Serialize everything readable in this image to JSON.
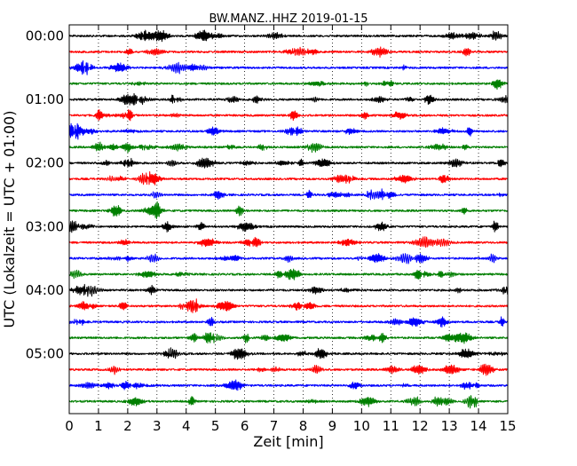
{
  "chart_data": {
    "type": "line",
    "title": "BW.MANZ..HHZ 2019-01-15",
    "xlabel": "Zeit  [min]",
    "ylabel": "UTC (Lokalzeit = UTC + 01:00)",
    "xlim": [
      0,
      15
    ],
    "x_ticks": [
      "0",
      "1",
      "2",
      "3",
      "4",
      "5",
      "6",
      "7",
      "8",
      "9",
      "10",
      "11",
      "12",
      "13",
      "14",
      "15"
    ],
    "y_ticks": [
      "00:00",
      "01:00",
      "02:00",
      "03:00",
      "04:00",
      "05:00"
    ],
    "grid": "vertical dotted",
    "trace_colors": [
      "#000000",
      "#ff0000",
      "#0000ff",
      "#007f00"
    ],
    "trace_count": 24,
    "trace_minutes": 15
  }
}
